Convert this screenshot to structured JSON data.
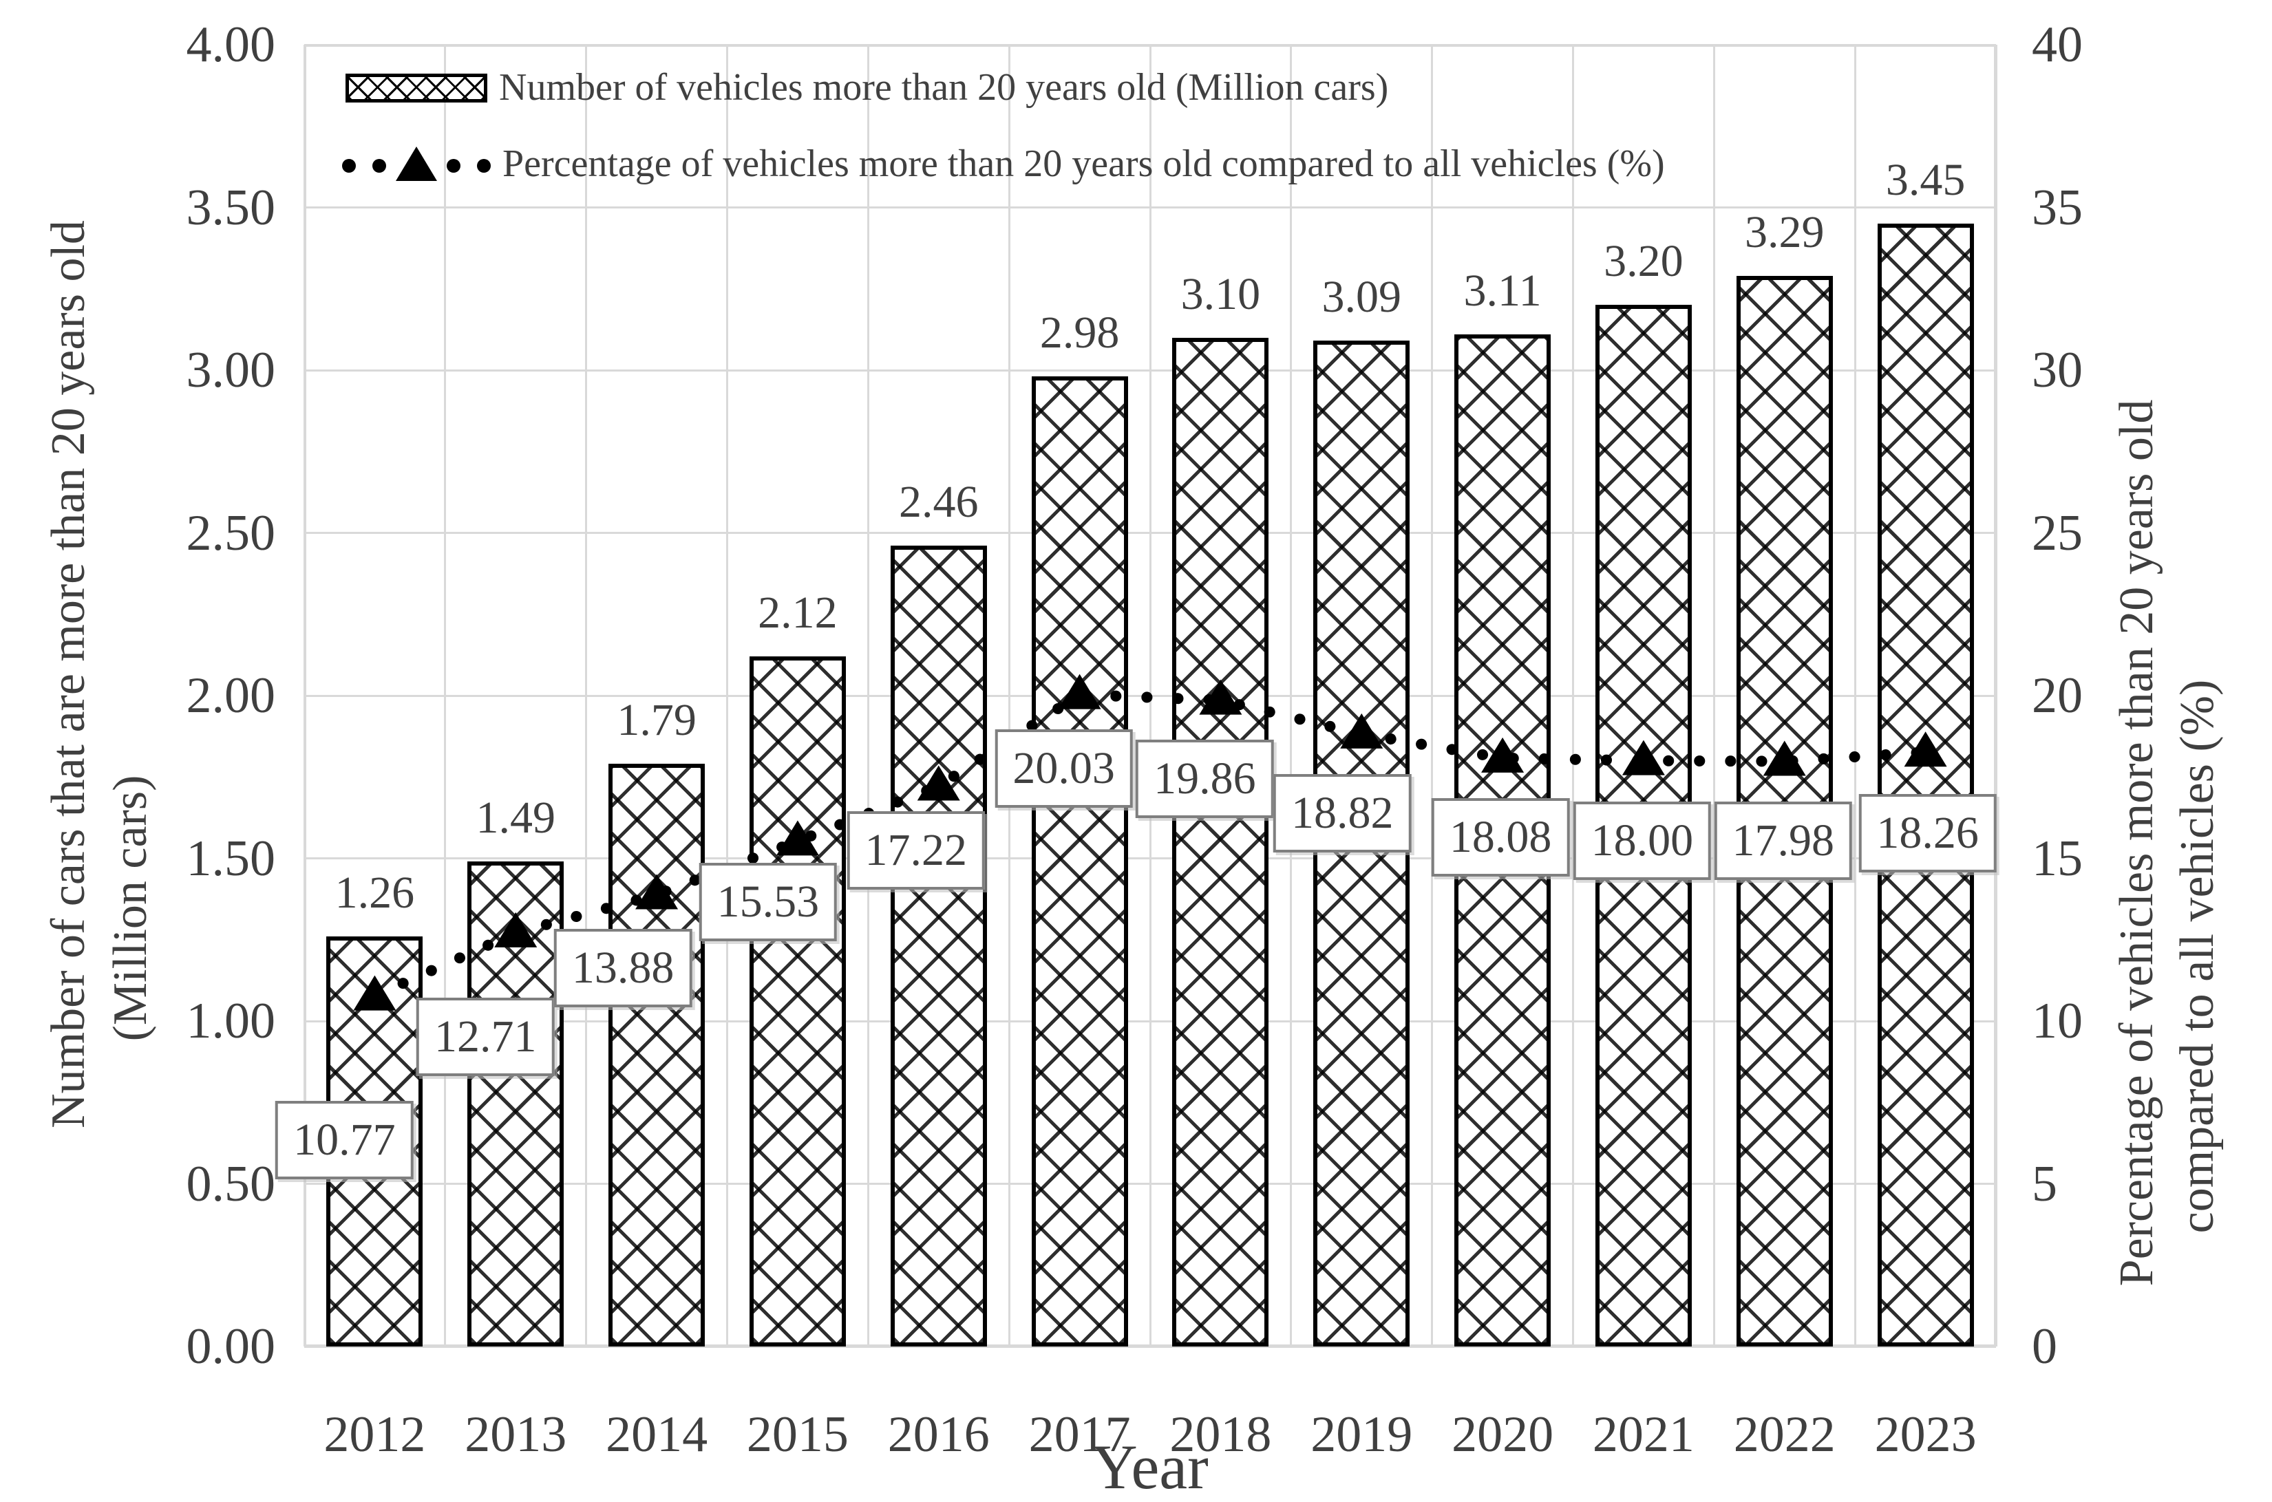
{
  "chart_data": {
    "type": "bar",
    "subtype": "bar-line-combo",
    "title": "",
    "categories": [
      "2012",
      "2013",
      "2014",
      "2015",
      "2016",
      "2017",
      "2018",
      "2019",
      "2020",
      "2021",
      "2022",
      "2023"
    ],
    "series": [
      {
        "name": "Number of vehicles more than 20 years old (Million cars)",
        "type": "bar",
        "axis": "left",
        "pattern": "black-white-crosshatch",
        "values": [
          1.26,
          1.49,
          1.79,
          2.12,
          2.46,
          2.98,
          3.1,
          3.09,
          3.11,
          3.2,
          3.29,
          3.45
        ],
        "labels": [
          "1.26",
          "1.49",
          "1.79",
          "2.12",
          "2.46",
          "2.98",
          "3.10",
          "3.09",
          "3.11",
          "3.20",
          "3.29",
          "3.45"
        ]
      },
      {
        "name": "Percentage of vehicles more than 20 years old compared to all vehicles (%)",
        "type": "line",
        "axis": "right",
        "line_style": "dotted",
        "marker": "filled-triangle",
        "values": [
          10.77,
          12.71,
          13.88,
          15.53,
          17.22,
          20.03,
          19.86,
          18.82,
          18.08,
          18.0,
          17.98,
          18.26
        ],
        "labels": [
          "10.77",
          "12.71",
          "13.88",
          "15.53",
          "17.22",
          "20.03",
          "19.86",
          "18.82",
          "18.08",
          "18.00",
          "17.98",
          "18.26"
        ],
        "label_boxed": true
      }
    ],
    "x_axis": {
      "title": "Year"
    },
    "left_axis": {
      "title_line1": "Number of cars that are more than 20 years old",
      "title_line2": "(Million cars)",
      "min": 0,
      "max": 4,
      "step": 0.5,
      "tick_labels": [
        "4.00",
        "3.50",
        "3.00",
        "2.50",
        "2.00",
        "1.50",
        "1.00",
        "0.50",
        "0.00"
      ]
    },
    "right_axis": {
      "title_line1": "Percentage of vehicles more than 20 years old",
      "title_line2": "compared to all vehicles (%)",
      "min": 0,
      "max": 40,
      "step": 5,
      "tick_labels": [
        "40",
        "35",
        "30",
        "25",
        "20",
        "15",
        "10",
        "5",
        "0"
      ]
    },
    "legend": {
      "position": "top-inside",
      "items": [
        {
          "swatch": "crosshatch-rect",
          "label": "Number of vehicles more than 20 years old (Million cars)"
        },
        {
          "swatch": "dotted-line-with-triangle",
          "label": "Percentage of vehicles more than 20 years old compared to all vehicles (%)"
        }
      ]
    },
    "grid": {
      "horizontal": true,
      "vertical": true
    },
    "colors": {
      "background": "#ffffff",
      "bar_fill": "#ffffff",
      "bar_pattern": "#000000",
      "bar_border": "#000000",
      "line": "#000000",
      "marker": "#000000",
      "grid": "#d9d9d9",
      "label_box_fill": "#ffffff",
      "label_box_border": "#7f7f7f",
      "text": "#404040"
    }
  }
}
